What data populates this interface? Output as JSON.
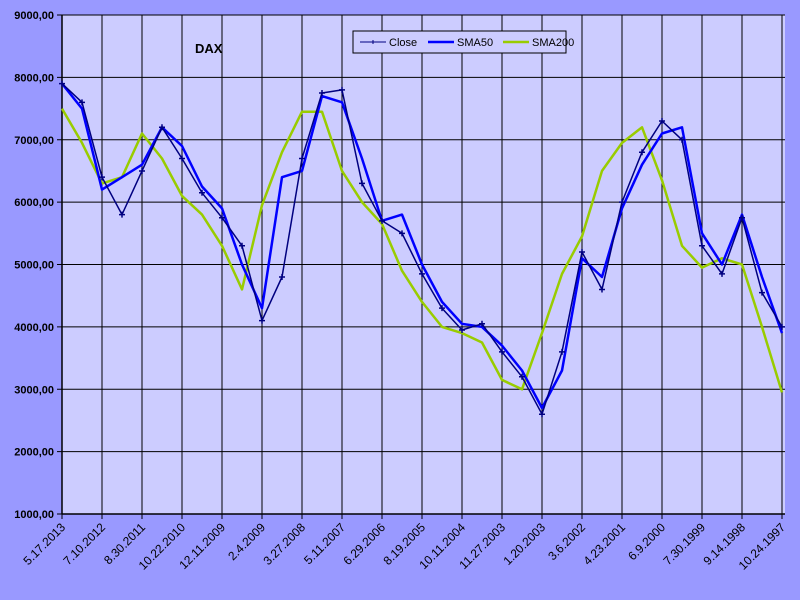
{
  "chart_data": {
    "type": "line",
    "title": "DAX",
    "xlabel": "",
    "ylabel": "",
    "x_axis_reversed_time": true,
    "ylim": [
      1000,
      9000
    ],
    "yticks": [
      "1000,00",
      "2000,00",
      "3000,00",
      "4000,00",
      "5000,00",
      "6000,00",
      "7000,00",
      "8000,00",
      "9000,00"
    ],
    "xtick_labels": [
      "5.17.2013",
      "7.10.2012",
      "8.30.2011",
      "10.22.2010",
      "12.11.2009",
      "2.4.2009",
      "3.27.2008",
      "5.11.2007",
      "6.29.2006",
      "8.19.2005",
      "10.11.2004",
      "11.27.2003",
      "1.20.2003",
      "3.6.2002",
      "4.23.2001",
      "6.9.2000",
      "7.30.1999",
      "9.14.1998",
      "10.24.1997"
    ],
    "grid": true,
    "legend_placement": "top-center",
    "x": [
      "5.17.2013",
      "12.13.2012",
      "7.10.2012",
      "2.3.2012",
      "8.30.2011",
      "3.27.2011",
      "10.22.2010",
      "5.17.2010",
      "12.11.2009",
      "7.9.2009",
      "2.4.2009",
      "8.31.2008",
      "3.27.2008",
      "10.18.2007",
      "5.11.2007",
      "12.4.2006",
      "6.29.2006",
      "1.23.2006",
      "8.19.2005",
      "3.16.2005",
      "10.11.2004",
      "5.4.2004",
      "11.27.2003",
      "6.24.2003",
      "1.20.2003",
      "8.13.2002",
      "3.6.2002",
      "9.29.2001",
      "4.23.2001",
      "11.15.2000",
      "6.9.2000",
      "1.3.2000",
      "7.30.1999",
      "2.21.1999",
      "9.14.1998",
      "4.4.1998",
      "10.24.1997"
    ],
    "series": [
      {
        "name": "Close",
        "color": "#000080",
        "marker": "plus",
        "values": [
          7900,
          7600,
          6400,
          5800,
          6500,
          7200,
          6700,
          6150,
          5750,
          5300,
          4100,
          4800,
          6700,
          7750,
          7800,
          6300,
          5700,
          5500,
          4850,
          4300,
          3950,
          4050,
          3600,
          3200,
          2600,
          3600,
          5200,
          4600,
          6000,
          6800,
          7300,
          7000,
          5300,
          4850,
          5750,
          4550,
          4000
        ]
      },
      {
        "name": "SMA50",
        "color": "#0000ff",
        "values": [
          7900,
          7500,
          6200,
          6400,
          6600,
          7200,
          6900,
          6250,
          5900,
          5000,
          4300,
          6400,
          6500,
          7700,
          7600,
          6700,
          5700,
          5800,
          5000,
          4400,
          4050,
          4000,
          3700,
          3300,
          2700,
          3300,
          5100,
          4800,
          5900,
          6600,
          7100,
          7200,
          5500,
          5000,
          5800,
          4800,
          3900
        ]
      },
      {
        "name": "SMA200",
        "color": "#99cc00",
        "values": [
          7500,
          6950,
          6300,
          6400,
          7100,
          6700,
          6100,
          5800,
          5300,
          4600,
          5950,
          6800,
          7450,
          7450,
          6500,
          6000,
          5650,
          4900,
          4400,
          4000,
          3900,
          3750,
          3150,
          3000,
          3900,
          4850,
          5450,
          6500,
          6950,
          7200,
          6350,
          5300,
          4950,
          5100,
          5000,
          4000,
          2950
        ]
      }
    ]
  },
  "colors": {
    "background": "#9999ff",
    "plot_area": "#ccccff",
    "grid": "#000000"
  }
}
